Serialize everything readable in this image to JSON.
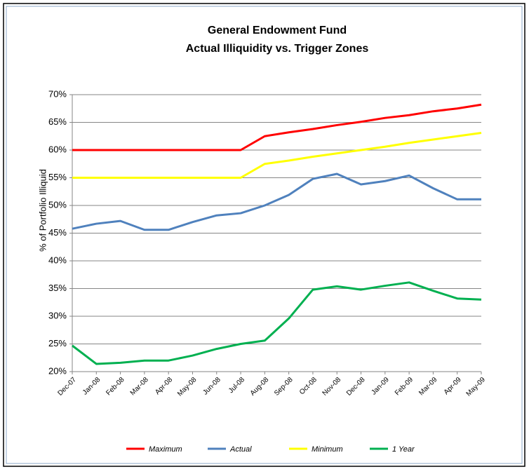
{
  "chart_data": {
    "type": "line",
    "title": [
      "General Endowment Fund",
      "Actual Illiquidity vs. Trigger Zones"
    ],
    "y_label": "% of Portfolio Illiquid",
    "categories": [
      "Dec-07",
      "Jan-08",
      "Feb-08",
      "Mar-08",
      "Apr-08",
      "May-08",
      "Jun-08",
      "Jul-08",
      "Aug-08",
      "Sep-08",
      "Oct-08",
      "Nov-08",
      "Dec-08",
      "Jan-09",
      "Feb-09",
      "Mar-09",
      "Apr-09",
      "May-09"
    ],
    "series": [
      {
        "name": "Maximum",
        "color": "#ff0000",
        "values": [
          60,
          60,
          60,
          60,
          60,
          60,
          60,
          60,
          62.5,
          63.2,
          63.8,
          64.5,
          65.1,
          65.8,
          66.3,
          67.0,
          67.5,
          68.2
        ]
      },
      {
        "name": "Actual",
        "color": "#4f81bd",
        "values": [
          45.8,
          46.7,
          47.2,
          45.6,
          45.6,
          47.0,
          48.2,
          48.6,
          50.0,
          51.9,
          54.8,
          55.7,
          53.8,
          54.4,
          55.4,
          53.1,
          51.1,
          51.1
        ]
      },
      {
        "name": "Minimum",
        "color": "#ffff00",
        "values": [
          55,
          55,
          55,
          55,
          55,
          55,
          55,
          55,
          57.5,
          58.1,
          58.8,
          59.4,
          60.0,
          60.6,
          61.3,
          61.9,
          62.5,
          63.1
        ]
      },
      {
        "name": "1 Year",
        "color": "#00b050",
        "values": [
          24.7,
          21.4,
          21.6,
          22.0,
          22.0,
          22.9,
          24.1,
          25.0,
          25.6,
          29.6,
          34.8,
          35.4,
          34.8,
          35.5,
          36.1,
          34.6,
          33.2,
          33.0
        ]
      }
    ],
    "ylim": [
      20,
      70
    ],
    "yticks": [
      {
        "value": 20,
        "label": "20%"
      },
      {
        "value": 25,
        "label": "25%"
      },
      {
        "value": 30,
        "label": "30%"
      },
      {
        "value": 35,
        "label": "35%"
      },
      {
        "value": 40,
        "label": "40%"
      },
      {
        "value": 45,
        "label": "45%"
      },
      {
        "value": 50,
        "label": "50%"
      },
      {
        "value": 55,
        "label": "55%"
      },
      {
        "value": 60,
        "label": "60%"
      },
      {
        "value": 65,
        "label": "65%"
      },
      {
        "value": 70,
        "label": "70%"
      }
    ],
    "grid": true,
    "legend": "bottom"
  }
}
